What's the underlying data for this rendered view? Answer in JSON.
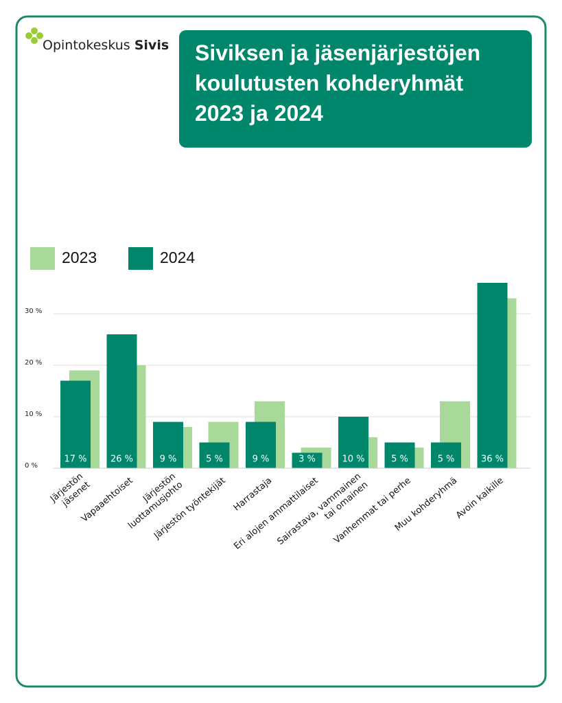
{
  "logo": {
    "prefix": "Opintokeskus",
    "name": "Sivis"
  },
  "chart_data": {
    "type": "bar",
    "title": "Siviksen ja jäsenjärjestöjen\nkoulutusten kohderyhmät\n2023 ja 2024",
    "categories": [
      "Järjestön\njäsenet",
      "Vapaaehtoiset",
      "Järjestön\nluottamusjohto",
      "Järjestön työntekijät",
      "Harrastaja",
      "Eri alojen ammattilaiset",
      "Sairastava, vammainen\ntai omainen",
      "Vanhemmat tai perhe",
      "Muu kohderyhmä",
      "Avoin kaikille"
    ],
    "series": [
      {
        "name": "2023",
        "color": "#a8d89a",
        "values": [
          19,
          20,
          8,
          9,
          13,
          4,
          6,
          4,
          13,
          33
        ]
      },
      {
        "name": "2024",
        "color": "#00866a",
        "values": [
          17,
          26,
          9,
          5,
          9,
          3,
          10,
          5,
          5,
          36
        ],
        "value_labels": [
          "17 %",
          "26 %",
          "9 %",
          "5 %",
          "9 %",
          "3 %",
          "10 %",
          "5 %",
          "5 %",
          "36 %"
        ]
      }
    ],
    "ylim": [
      0,
      40
    ],
    "yticks": [
      {
        "value": 0,
        "label": "0 %"
      },
      {
        "value": 10,
        "label": "10 %"
      },
      {
        "value": 20,
        "label": "20 %"
      },
      {
        "value": 30,
        "label": "30 %"
      }
    ],
    "grid": true,
    "legend": "top-left"
  }
}
